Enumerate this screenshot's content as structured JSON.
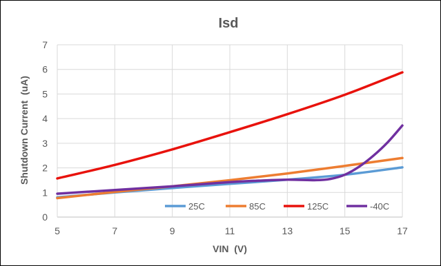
{
  "chart_data": {
    "type": "line",
    "title": "Isd",
    "xlabel": "VIN  (V)",
    "ylabel": "Shutdown Current  (uA)",
    "xlim": [
      5,
      17
    ],
    "ylim": [
      0,
      7
    ],
    "x_ticks": [
      "5",
      "7",
      "9",
      "11",
      "13",
      "15",
      "17"
    ],
    "y_ticks": [
      "0",
      "1",
      "2",
      "3",
      "4",
      "5",
      "6",
      "7"
    ],
    "grid": {
      "horizontal": true,
      "vertical": true
    },
    "legend_position": "bottom-right",
    "series": [
      {
        "name": "25C",
        "color": "#5B9BD5",
        "x": [
          5,
          7,
          9,
          11,
          13,
          15,
          17
        ],
        "y": [
          0.8,
          1.0,
          1.18,
          1.35,
          1.52,
          1.72,
          2.02
        ]
      },
      {
        "name": "85C",
        "color": "#ED7D31",
        "x": [
          5,
          7,
          9,
          11,
          13,
          15,
          17
        ],
        "y": [
          0.77,
          1.02,
          1.25,
          1.5,
          1.77,
          2.08,
          2.4
        ]
      },
      {
        "name": "125C",
        "color": "#E8120C",
        "x": [
          5,
          7,
          9,
          11,
          13,
          15,
          17
        ],
        "y": [
          1.57,
          2.12,
          2.75,
          3.45,
          4.18,
          4.97,
          5.88
        ]
      },
      {
        "name": "-40C",
        "color": "#7030A0",
        "x": [
          5,
          7,
          9,
          11,
          12,
          13,
          14,
          14.5,
          15,
          15.5,
          16,
          16.5,
          17
        ],
        "y": [
          0.95,
          1.1,
          1.25,
          1.42,
          1.48,
          1.52,
          1.5,
          1.55,
          1.72,
          2.05,
          2.5,
          3.05,
          3.72
        ]
      }
    ]
  }
}
